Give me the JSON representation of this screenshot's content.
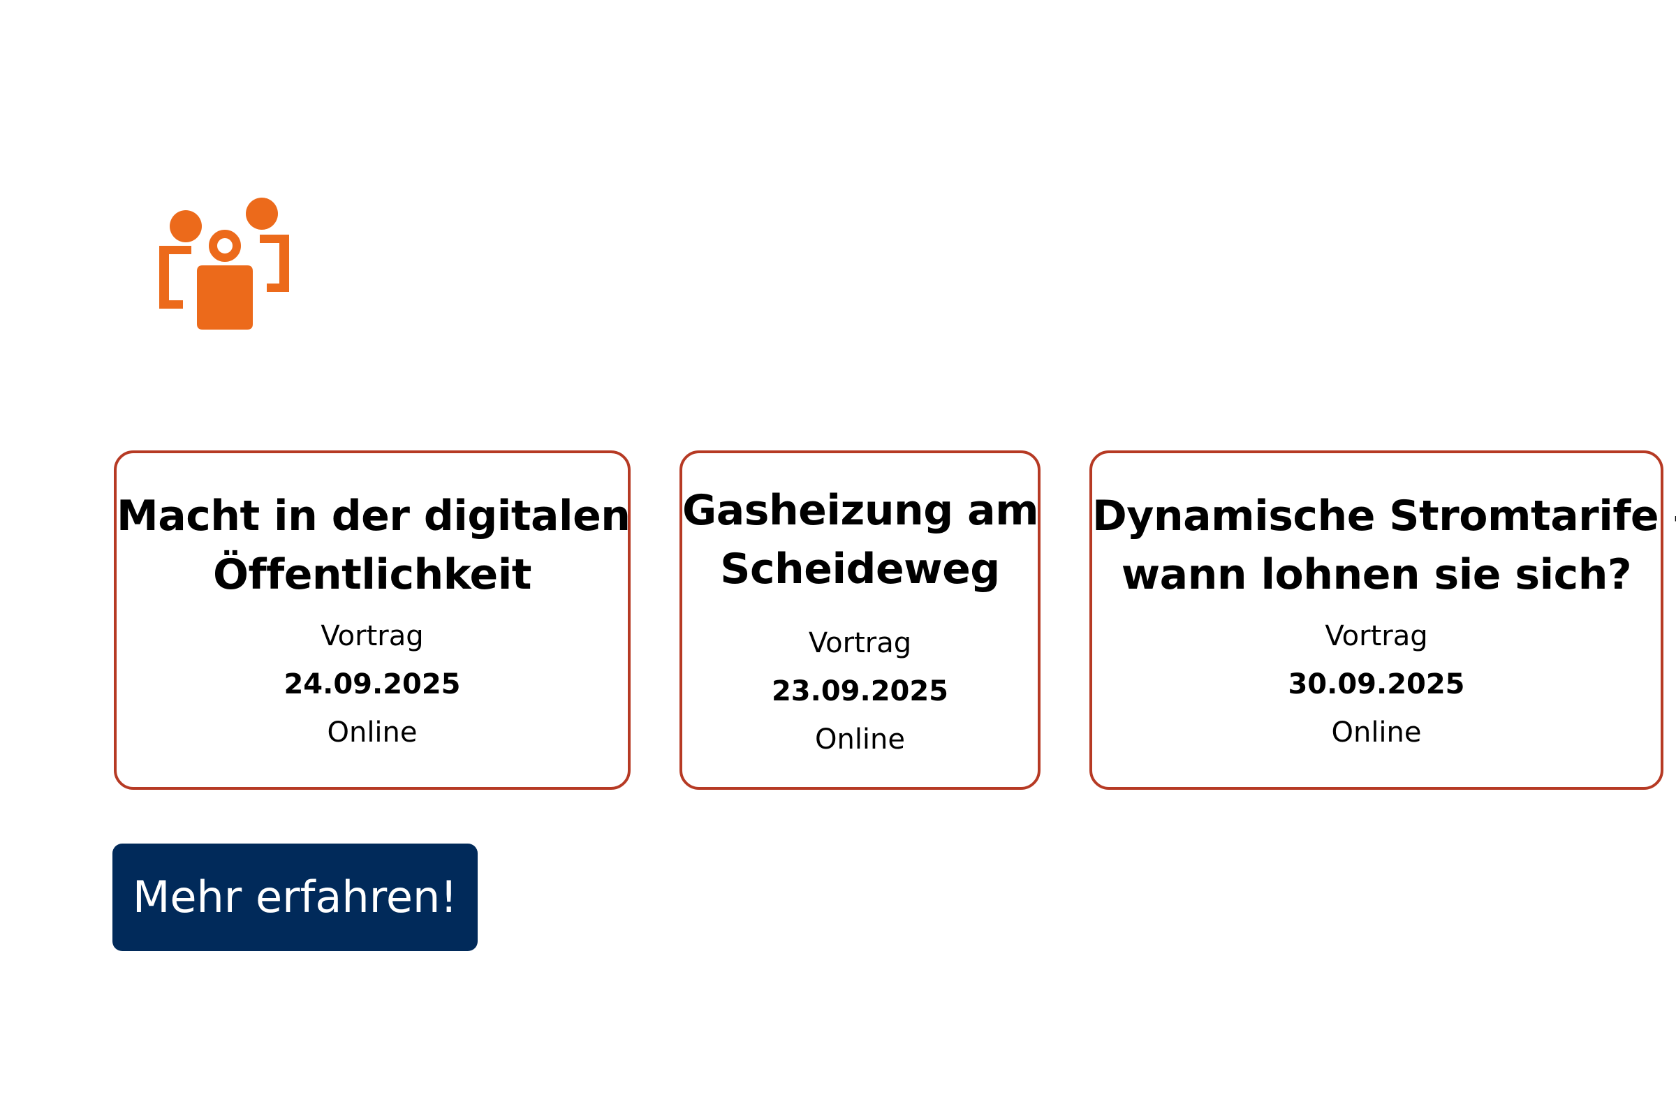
{
  "icon": {
    "name": "group-people-icon",
    "color": "#ec6a1b"
  },
  "colors": {
    "card_border": "#b63a24",
    "button_background": "#012a5a",
    "button_text": "#ffffff"
  },
  "events": [
    {
      "title_line1": "Macht in der digitalen",
      "title_line2": "Öffentlichkeit",
      "type": "Vortrag",
      "date": "24.09.2025",
      "location": "Online"
    },
    {
      "title_line1": "Gasheizung am",
      "title_line2": "Scheideweg",
      "type": "Vortrag",
      "date": "23.09.2025",
      "location": "Online"
    },
    {
      "title_line1": "Dynamische Stromtarife –",
      "title_line2": "wann lohnen sie sich?",
      "type": "Vortrag",
      "date": "30.09.2025",
      "location": "Online"
    }
  ],
  "cta": {
    "label": "Mehr erfahren!"
  }
}
